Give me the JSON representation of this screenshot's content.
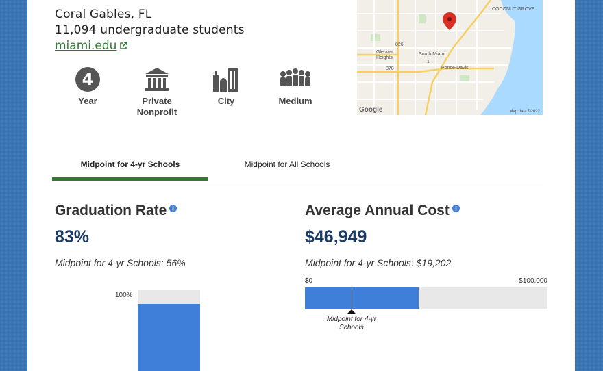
{
  "school": {
    "location": "Coral Gables, FL",
    "students": "11,094 undergraduate students",
    "website": "miami.edu"
  },
  "features": [
    {
      "icon": "four-year-icon",
      "label": "Year"
    },
    {
      "icon": "building-columns-icon",
      "label": "Private\nNonprofit"
    },
    {
      "icon": "city-icon",
      "label": "City"
    },
    {
      "icon": "people-group-icon",
      "label": "Medium"
    }
  ],
  "map": {
    "labels": [
      "COCONUT GROVE",
      "Glenvar Heights",
      "South Miami",
      "Ponce-Davis",
      "826",
      "878",
      "1"
    ],
    "google": "Google",
    "attribution": "Map data ©2022"
  },
  "tabs": [
    {
      "label": "Midpoint for 4-yr Schools",
      "active": true
    },
    {
      "label": "Midpoint for All Schools",
      "active": false
    }
  ],
  "graduation": {
    "title": "Graduation Rate",
    "value": "83%",
    "midpoint_text": "Midpoint for 4-yr Schools: 56%"
  },
  "cost": {
    "title": "Average Annual Cost",
    "value": "$46,949",
    "midpoint_text": "Midpoint for 4-yr Schools: $19,202",
    "axis_min": "$0",
    "axis_max": "$100,000",
    "marker_label": "Midpoint for 4-yr Schools"
  },
  "chart_data": [
    {
      "type": "bar",
      "categories": [
        "Graduation Rate"
      ],
      "values": [
        83
      ],
      "midpoint": 56,
      "ylim": [
        0,
        100
      ],
      "tick_labels": [
        "100%"
      ]
    },
    {
      "type": "bar",
      "orientation": "horizontal",
      "categories": [
        "Average Annual Cost"
      ],
      "values": [
        46949
      ],
      "midpoint": 19202,
      "xlim": [
        0,
        100000
      ]
    }
  ],
  "colors": {
    "accent_green": "#2e7d32",
    "bar_blue": "#3f7fd9",
    "bar_track": "#e8e8e8",
    "value_navy": "#1c3c66"
  }
}
